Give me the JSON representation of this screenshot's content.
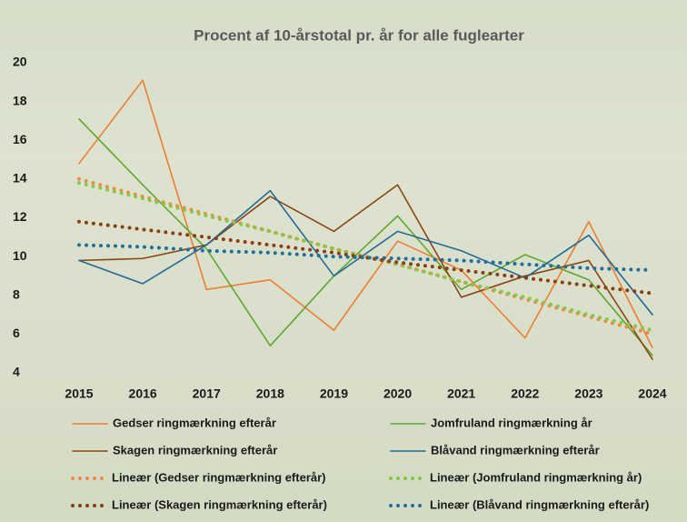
{
  "chart_data": {
    "type": "line",
    "title": "Procent af 10-årstotal pr. år for alle fuglearter",
    "categories": [
      "2015",
      "2016",
      "2017",
      "2018",
      "2019",
      "2020",
      "2021",
      "2022",
      "2023",
      "2024"
    ],
    "ylim": [
      4,
      20
    ],
    "yticks": [
      4,
      6,
      8,
      10,
      12,
      14,
      16,
      18,
      20
    ],
    "grid": false,
    "series": [
      {
        "name": "Gedser ringmærkning efterår",
        "color": "#ed7d31",
        "style": "solid",
        "values": [
          14.8,
          19.1,
          8.3,
          8.8,
          6.2,
          10.8,
          9.3,
          5.8,
          11.8,
          5.3
        ]
      },
      {
        "name": "Jomfruland ringmærkning år",
        "color": "#5ea832",
        "style": "solid",
        "values": [
          17.1,
          13.7,
          10.4,
          5.4,
          9.0,
          12.1,
          8.3,
          10.1,
          8.8,
          4.9
        ]
      },
      {
        "name": "Skagen ringmærkning efterår",
        "color": "#8b4513",
        "style": "solid",
        "values": [
          9.8,
          9.9,
          10.6,
          13.1,
          11.3,
          13.7,
          7.9,
          9.0,
          9.8,
          4.7
        ]
      },
      {
        "name": "Blåvand ringmærkning efterår",
        "color": "#256a96",
        "style": "solid",
        "values": [
          9.8,
          8.6,
          10.6,
          13.4,
          9.0,
          11.3,
          10.3,
          8.9,
          11.1,
          7.0
        ]
      },
      {
        "name": "Lineær (Gedser ringmærkning efterår)",
        "color": "#ef8a4a",
        "style": "dotted",
        "values": [
          14.0,
          13.1,
          12.2,
          11.3,
          10.4,
          9.6,
          8.7,
          7.8,
          6.9,
          6.0
        ]
      },
      {
        "name": "Lineær (Jomfruland ringmærkning år)",
        "color": "#84c94a",
        "style": "dotted",
        "values": [
          13.8,
          13.0,
          12.1,
          11.3,
          10.4,
          9.6,
          8.7,
          7.9,
          7.0,
          6.2
        ]
      },
      {
        "name": "Lineær (Skagen ringmærkning efterår)",
        "color": "#8b3e12",
        "style": "dotted",
        "values": [
          11.8,
          11.4,
          11.0,
          10.6,
          10.2,
          9.7,
          9.3,
          8.9,
          8.5,
          8.1
        ]
      },
      {
        "name": "Lineær (Blåvand ringmærkning efterår)",
        "color": "#1f6e9c",
        "style": "dotted",
        "values": [
          10.6,
          10.5,
          10.3,
          10.2,
          10.0,
          9.9,
          9.8,
          9.6,
          9.4,
          9.3
        ]
      }
    ]
  }
}
